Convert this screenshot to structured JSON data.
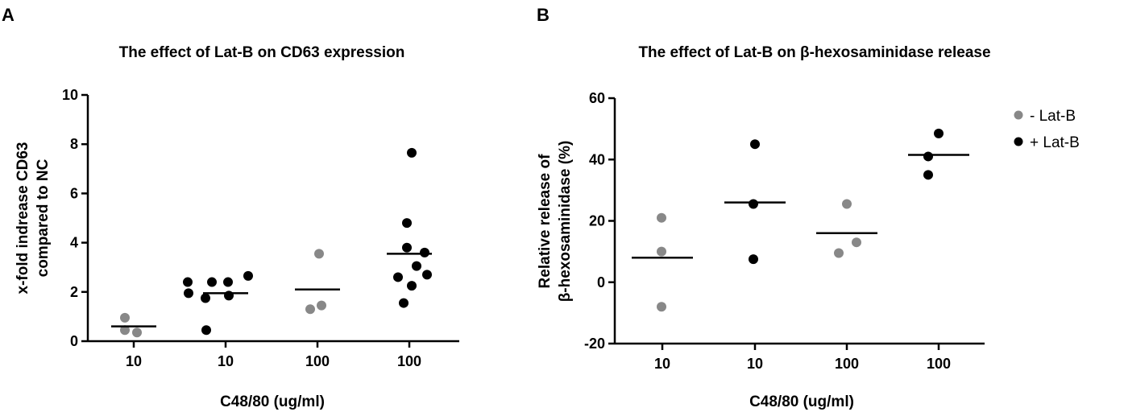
{
  "colors": {
    "minus": "#888888",
    "plus": "#000000",
    "axis": "#000000"
  },
  "chart_data": [
    {
      "panel": "A",
      "type": "scatter",
      "title": "The effect of Lat-B on CD63 expression",
      "xlabel": "C48/80 (ug/ml)",
      "ylabel_lines": [
        "x-fold indrease CD63",
        "compared to NC"
      ],
      "ylim": [
        0,
        10
      ],
      "yticks": [
        0,
        2,
        4,
        6,
        8,
        10
      ],
      "categories": [
        "10",
        "10",
        "100",
        "100"
      ],
      "groups": [
        {
          "series": "- Lat-B",
          "values": [
            0.95,
            0.35,
            0.45
          ],
          "mean": 0.6
        },
        {
          "series": "+ Lat-B",
          "values": [
            2.4,
            2.4,
            2.4,
            2.65,
            1.95,
            1.75,
            1.85,
            0.45
          ],
          "mean": 1.95
        },
        {
          "series": "- Lat-B",
          "values": [
            3.55,
            1.3,
            1.45
          ],
          "mean": 2.1
        },
        {
          "series": "+ Lat-B",
          "values": [
            7.65,
            4.8,
            3.8,
            3.05,
            3.6,
            2.6,
            2.7,
            2.25,
            1.55
          ],
          "mean": 3.55
        }
      ]
    },
    {
      "panel": "B",
      "type": "scatter",
      "title": "The effect of Lat-B on β-hexosaminidase release",
      "xlabel": "C48/80 (ug/ml)",
      "ylabel_lines": [
        "Relative release of",
        "β-hexosaminidase (%)"
      ],
      "ylim": [
        -20,
        60
      ],
      "yticks": [
        -20,
        0,
        20,
        40,
        60
      ],
      "categories": [
        "10",
        "10",
        "100",
        "100"
      ],
      "groups": [
        {
          "series": "- Lat-B",
          "values": [
            21,
            10,
            -8
          ],
          "mean": 8
        },
        {
          "series": "+ Lat-B",
          "values": [
            45,
            25.5,
            7.5
          ],
          "mean": 26
        },
        {
          "series": "- Lat-B",
          "values": [
            25.5,
            13,
            9.5
          ],
          "mean": 16
        },
        {
          "series": "+ Lat-B",
          "values": [
            48.5,
            41,
            35
          ],
          "mean": 41.5
        }
      ],
      "legend": [
        {
          "label": "- Lat-B",
          "series": "minus"
        },
        {
          "label": "+ Lat-B",
          "series": "plus"
        }
      ]
    }
  ]
}
